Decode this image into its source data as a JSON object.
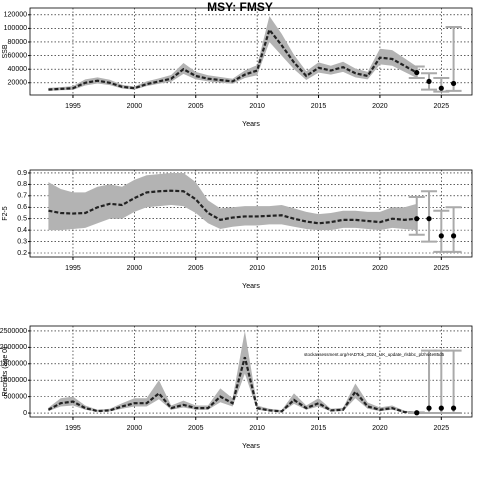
{
  "chart_data": [
    {
      "type": "line",
      "title": "MSY: FMSY",
      "xlabel": "Years",
      "ylabel": "SSB",
      "x": [
        1993,
        1994,
        1995,
        1996,
        1997,
        1998,
        1999,
        2000,
        2001,
        2002,
        2003,
        2004,
        2005,
        2006,
        2007,
        2008,
        2009,
        2010,
        2011,
        2012,
        2013,
        2014,
        2015,
        2016,
        2017,
        2018,
        2019,
        2020,
        2021,
        2022,
        2023
      ],
      "values": [
        10000,
        11000,
        12000,
        20000,
        23000,
        20000,
        14000,
        12000,
        18000,
        22000,
        26000,
        40000,
        30000,
        26000,
        24000,
        22000,
        32000,
        38000,
        98000,
        75000,
        50000,
        30000,
        42000,
        38000,
        43000,
        34000,
        30000,
        57000,
        55000,
        45000,
        35000
      ],
      "lower": [
        8000,
        9000,
        9500,
        16000,
        19000,
        16500,
        11500,
        10000,
        15000,
        18500,
        21500,
        33000,
        25000,
        22000,
        20000,
        18500,
        27000,
        31000,
        80000,
        60000,
        40000,
        24000,
        35000,
        32000,
        36000,
        28000,
        25000,
        47000,
        45000,
        36000,
        27000
      ],
      "upper": [
        12500,
        13500,
        15000,
        25000,
        28000,
        24500,
        17000,
        14500,
        22000,
        26500,
        31500,
        49000,
        36000,
        31000,
        28500,
        26000,
        38000,
        46000,
        118000,
        92000,
        61000,
        37000,
        50000,
        45000,
        51000,
        41000,
        36000,
        70000,
        68000,
        56000,
        44000
      ],
      "proj_x": [
        2023,
        2024,
        2025,
        2026
      ],
      "proj": [
        35000,
        22000,
        12000,
        19000
      ],
      "proj_low": [
        27000,
        10000,
        7000,
        8000
      ],
      "proj_high": [
        44000,
        34000,
        27000,
        102000
      ],
      "color": "#222222",
      "band_color": "#b3b3b3",
      "bar_color": "#aaaaaa",
      "xlim": [
        1991.5,
        2027.5
      ],
      "xticks": [
        1995,
        2000,
        2005,
        2010,
        2015,
        2020,
        2025
      ],
      "ylim": [
        2000,
        130000
      ],
      "yticks": [
        20000,
        40000,
        60000,
        80000,
        100000,
        120000
      ],
      "grid": true
    },
    {
      "type": "line",
      "xlabel": "Years",
      "ylabel": "F2-5",
      "x": [
        1993,
        1994,
        1995,
        1996,
        1997,
        1998,
        1999,
        2000,
        2001,
        2002,
        2003,
        2004,
        2005,
        2006,
        2007,
        2008,
        2009,
        2010,
        2011,
        2012,
        2013,
        2014,
        2015,
        2016,
        2017,
        2018,
        2019,
        2020,
        2021,
        2022,
        2023
      ],
      "values": [
        0.57,
        0.55,
        0.545,
        0.55,
        0.6,
        0.63,
        0.62,
        0.68,
        0.73,
        0.74,
        0.745,
        0.74,
        0.67,
        0.55,
        0.49,
        0.51,
        0.52,
        0.52,
        0.525,
        0.53,
        0.5,
        0.475,
        0.46,
        0.47,
        0.49,
        0.49,
        0.48,
        0.47,
        0.5,
        0.49,
        0.5
      ],
      "lower": [
        0.4,
        0.4,
        0.41,
        0.42,
        0.46,
        0.5,
        0.5,
        0.56,
        0.6,
        0.61,
        0.62,
        0.61,
        0.55,
        0.46,
        0.41,
        0.43,
        0.44,
        0.44,
        0.45,
        0.45,
        0.43,
        0.41,
        0.4,
        0.4,
        0.42,
        0.42,
        0.41,
        0.4,
        0.42,
        0.41,
        0.4
      ],
      "upper": [
        0.82,
        0.76,
        0.73,
        0.73,
        0.78,
        0.8,
        0.78,
        0.84,
        0.88,
        0.89,
        0.9,
        0.9,
        0.82,
        0.66,
        0.59,
        0.6,
        0.61,
        0.61,
        0.61,
        0.62,
        0.59,
        0.56,
        0.54,
        0.55,
        0.57,
        0.57,
        0.56,
        0.56,
        0.6,
        0.6,
        0.63
      ],
      "proj_x": [
        2023,
        2024,
        2025,
        2026
      ],
      "proj": [
        0.5,
        0.5,
        0.35,
        0.35
      ],
      "proj_low": [
        0.36,
        0.3,
        0.21,
        0.21
      ],
      "proj_high": [
        0.69,
        0.74,
        0.57,
        0.6
      ],
      "color": "#222222",
      "band_color": "#b3b3b3",
      "bar_color": "#aaaaaa",
      "xlim": [
        1991.5,
        2027.5
      ],
      "xticks": [
        1995,
        2000,
        2005,
        2010,
        2015,
        2020,
        2025
      ],
      "ylim": [
        0.165,
        0.926
      ],
      "yticks": [
        0.2,
        0.3,
        0.4,
        0.5,
        0.6,
        0.7,
        0.8,
        0.9
      ],
      "grid": true
    },
    {
      "type": "line",
      "xlabel": "Years",
      "ylabel": "Recruits (age 0)",
      "annotation": "stockassessment.org/HADTok_2024_UK_update_rlsbbc_plzhs4e85d5",
      "x": [
        1993,
        1994,
        1995,
        1996,
        1997,
        1998,
        1999,
        2000,
        2001,
        2002,
        2003,
        2004,
        2005,
        2006,
        2007,
        2008,
        2009,
        2010,
        2011,
        2012,
        2013,
        2014,
        2015,
        2016,
        2017,
        2018,
        2019,
        2020,
        2021,
        2022,
        2023
      ],
      "values": [
        100000,
        300000,
        350000,
        150000,
        60000,
        80000,
        200000,
        300000,
        300000,
        600000,
        150000,
        250000,
        150000,
        150000,
        500000,
        300000,
        1700000,
        150000,
        80000,
        50000,
        400000,
        150000,
        300000,
        80000,
        100000,
        650000,
        200000,
        100000,
        150000,
        30000,
        10000
      ],
      "lower": [
        60000,
        200000,
        230000,
        100000,
        40000,
        50000,
        130000,
        200000,
        200000,
        420000,
        100000,
        170000,
        100000,
        100000,
        330000,
        200000,
        1200000,
        100000,
        50000,
        30000,
        280000,
        100000,
        200000,
        50000,
        60000,
        450000,
        130000,
        60000,
        100000,
        10000,
        0
      ],
      "upper": [
        160000,
        450000,
        500000,
        230000,
        100000,
        130000,
        300000,
        450000,
        450000,
        1000000,
        230000,
        380000,
        230000,
        230000,
        750000,
        450000,
        2500000,
        230000,
        130000,
        90000,
        600000,
        230000,
        450000,
        130000,
        160000,
        900000,
        320000,
        170000,
        230000,
        70000,
        40000
      ],
      "proj_x": [
        2023,
        2024,
        2025,
        2026
      ],
      "proj": [
        10000,
        150000,
        150000,
        150000
      ],
      "proj_low": [
        0,
        0,
        0,
        0
      ],
      "proj_high": [
        20000,
        1900000,
        1900000,
        1900000
      ],
      "color": "#222222",
      "band_color": "#b3b3b3",
      "bar_color": "#aaaaaa",
      "xlim": [
        1991.5,
        2027.5
      ],
      "xticks": [
        1995,
        2000,
        2005,
        2010,
        2015,
        2020,
        2025
      ],
      "ylim": [
        -120000,
        2650000
      ],
      "yticks": [
        0,
        500000,
        1000000,
        1500000,
        2000000,
        2500000
      ],
      "grid": true
    }
  ]
}
